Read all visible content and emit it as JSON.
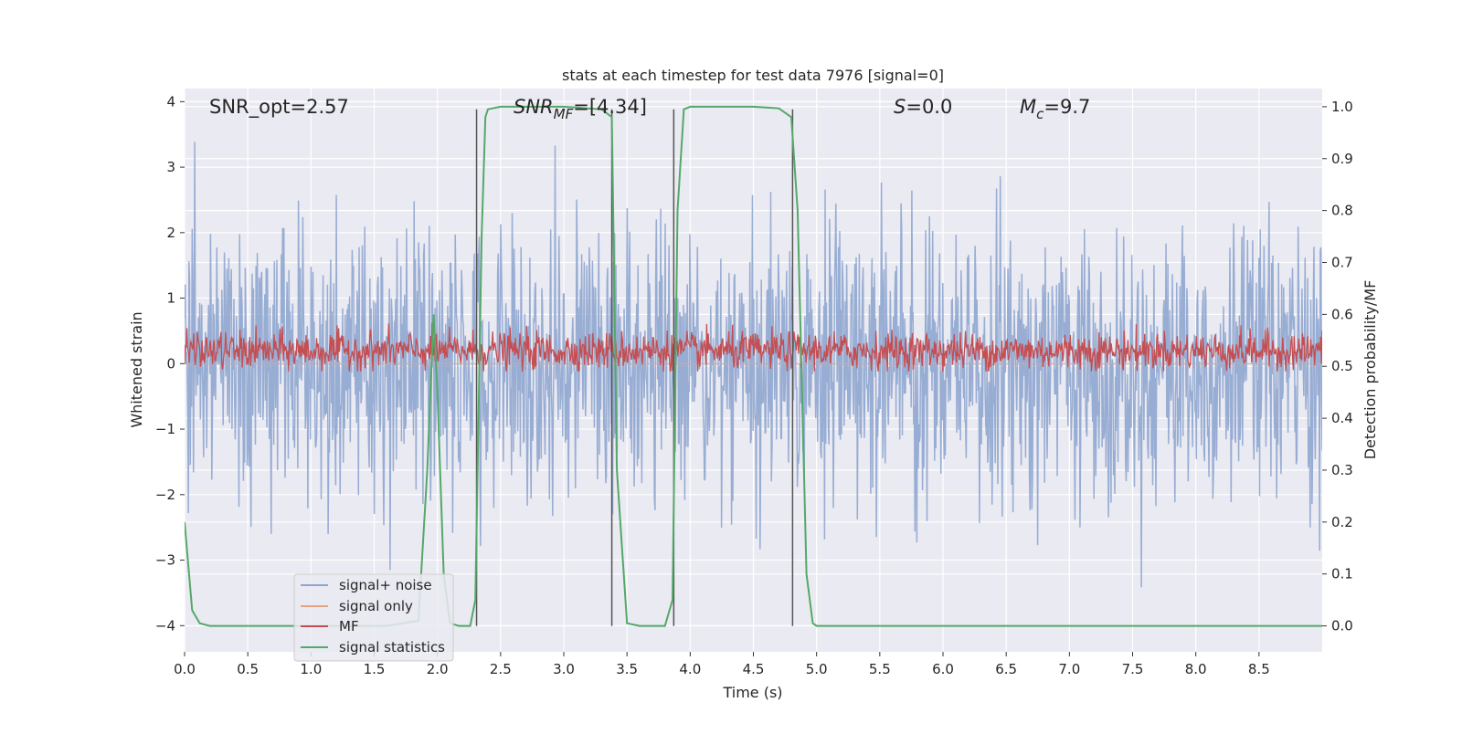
{
  "chart_data": {
    "type": "line",
    "title": "stats at each timestep for test data 7976 [signal=0]",
    "xlabel": "Time (s)",
    "ylabel": "Whitened strain",
    "y2label": "Detection probability/MF",
    "xlim": [
      0,
      9.0
    ],
    "ylim": [
      -4.4,
      4.2
    ],
    "y2lim": [
      -0.05,
      1.035
    ],
    "x_ticks": [
      0.0,
      0.5,
      1.0,
      1.5,
      2.0,
      2.5,
      3.0,
      3.5,
      4.0,
      4.5,
      5.0,
      5.5,
      6.0,
      6.5,
      7.0,
      7.5,
      8.0,
      8.5
    ],
    "x_tick_labels": [
      "0.0",
      "0.5",
      "1.0",
      "1.5",
      "2.0",
      "2.5",
      "3.0",
      "3.5",
      "4.0",
      "4.5",
      "5.0",
      "5.5",
      "6.0",
      "6.5",
      "7.0",
      "7.5",
      "8.0",
      "8.5"
    ],
    "y_ticks": [
      -4,
      -3,
      -2,
      -1,
      0,
      1,
      2,
      3,
      4
    ],
    "y_tick_labels": [
      "−4",
      "−3",
      "−2",
      "−1",
      "0",
      "1",
      "2",
      "3",
      "4"
    ],
    "y2_ticks": [
      0.0,
      0.1,
      0.2,
      0.3,
      0.4,
      0.5,
      0.6,
      0.7,
      0.8,
      0.9,
      1.0
    ],
    "y2_tick_labels": [
      "0.0",
      "0.1",
      "0.2",
      "0.3",
      "0.4",
      "0.5",
      "0.6",
      "0.7",
      "0.8",
      "0.9",
      "1.0"
    ],
    "grid": true,
    "legend_position": "lower-left",
    "annotations": {
      "snr_opt": "SNR_opt=2.57",
      "snr_mf_base": "SNR",
      "snr_mf_sub": "MF",
      "snr_mf_value": "=[4.34]",
      "s_var": "S",
      "s_value": "=0.0",
      "mc_base": "M",
      "mc_sub": "c",
      "mc_value": "=9.7"
    },
    "vertical_lines_x": [
      2.31,
      3.38,
      3.87,
      4.81
    ],
    "series": [
      {
        "name": "signal+ noise",
        "color": "#8fa6cf",
        "axis": "left",
        "kind": "noise",
        "amplitude_range": [
          -3.8,
          3.9
        ]
      },
      {
        "name": "signal only",
        "color": "#e8a185",
        "axis": "left",
        "kind": "flat",
        "values": []
      },
      {
        "name": "MF",
        "color": "#c44e52",
        "axis": "right",
        "kind": "noise",
        "center": 0.53,
        "range": [
          0.49,
          0.62
        ]
      },
      {
        "name": "signal statistics",
        "color": "#55a868",
        "axis": "right",
        "kind": "line",
        "x": [
          0.0,
          0.06,
          0.12,
          0.2,
          0.4,
          1.0,
          1.6,
          1.85,
          1.92,
          1.97,
          2.0,
          2.05,
          2.1,
          2.17,
          2.26,
          2.3,
          2.35,
          2.38,
          2.4,
          2.5,
          3.0,
          3.3,
          3.38,
          3.42,
          3.5,
          3.6,
          3.66,
          3.8,
          3.86,
          3.9,
          3.95,
          4.0,
          4.5,
          4.7,
          4.8,
          4.85,
          4.92,
          4.97,
          5.0,
          5.5,
          9.0
        ],
        "values": [
          0.2,
          0.03,
          0.005,
          0.0,
          0.0,
          0.0,
          0.0,
          0.01,
          0.3,
          0.6,
          0.45,
          0.1,
          0.005,
          0.0,
          0.0,
          0.05,
          0.75,
          0.98,
          0.995,
          1.0,
          1.0,
          0.995,
          0.98,
          0.3,
          0.005,
          0.0,
          0.0,
          0.0,
          0.05,
          0.8,
          0.995,
          1.0,
          1.0,
          0.997,
          0.98,
          0.8,
          0.1,
          0.005,
          0.0,
          0.0,
          0.0
        ]
      }
    ]
  }
}
